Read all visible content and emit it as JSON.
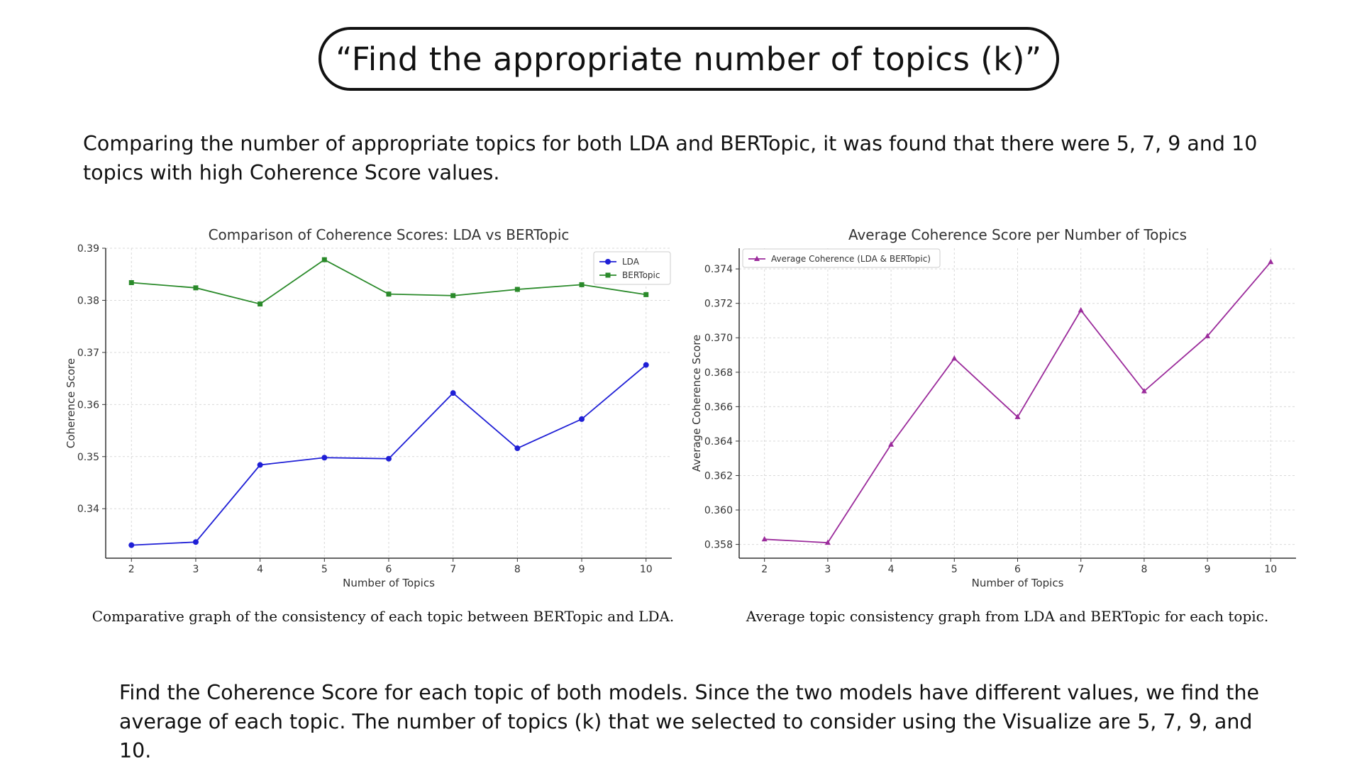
{
  "heading": "“Find the appropriate number of topics (k)”",
  "intro": "Comparing the number of appropriate topics for both LDA and BERTopic, it was found that there were 5, 7, 9 and 10 topics with high Coherence Score values.",
  "captions": [
    "Comparative graph of the consistency of each topic between BERTopic and LDA.",
    "Average topic consistency graph from LDA and BERTopic for each topic."
  ],
  "conclusion": "Find the Coherence Score for each topic of both models. Since the two models have different values, we find the average of each topic. The number of topics (k) that we selected to consider using the Visualize are 5, 7, 9, and 10.",
  "chart_data": [
    {
      "type": "line",
      "title": "Comparison of Coherence Scores: LDA vs BERTopic",
      "xlabel": "Number of Topics",
      "ylabel": "Coherence Score",
      "x": [
        2,
        3,
        4,
        5,
        6,
        7,
        8,
        9,
        10
      ],
      "ylim": [
        0.3305,
        0.39
      ],
      "yticks": [
        "0.34",
        "0.35",
        "0.36",
        "0.37",
        "0.38",
        "0.39"
      ],
      "ytick_values": [
        0.34,
        0.35,
        0.36,
        0.37,
        0.38,
        0.39
      ],
      "grid": true,
      "legend": "top-right",
      "series": [
        {
          "name": "LDA",
          "color": "#1f1fd6",
          "marker": "circle",
          "values": [
            0.333,
            0.3336,
            0.3484,
            0.3498,
            0.3496,
            0.3622,
            0.3516,
            0.3572,
            0.3676
          ]
        },
        {
          "name": "BERTopic",
          "color": "#2a8a2a",
          "marker": "square",
          "values": [
            0.3834,
            0.3824,
            0.3793,
            0.3878,
            0.3812,
            0.3809,
            0.3821,
            0.383,
            0.3811
          ]
        }
      ]
    },
    {
      "type": "line",
      "title": "Average Coherence Score per Number of Topics",
      "xlabel": "Number of Topics",
      "ylabel": "Average Coherence Score",
      "x": [
        2,
        3,
        4,
        5,
        6,
        7,
        8,
        9,
        10
      ],
      "ylim": [
        0.3572,
        0.3752
      ],
      "yticks": [
        "0.358",
        "0.360",
        "0.362",
        "0.364",
        "0.366",
        "0.368",
        "0.370",
        "0.372",
        "0.374"
      ],
      "ytick_values": [
        0.358,
        0.36,
        0.362,
        0.364,
        0.366,
        0.368,
        0.37,
        0.372,
        0.374
      ],
      "grid": true,
      "legend": "top-left",
      "series": [
        {
          "name": "Average Coherence (LDA & BERTopic)",
          "color": "#9b2b9b",
          "marker": "triangle",
          "values": [
            0.3583,
            0.3581,
            0.3638,
            0.3688,
            0.3654,
            0.3716,
            0.3669,
            0.3701,
            0.3744
          ]
        }
      ]
    }
  ]
}
